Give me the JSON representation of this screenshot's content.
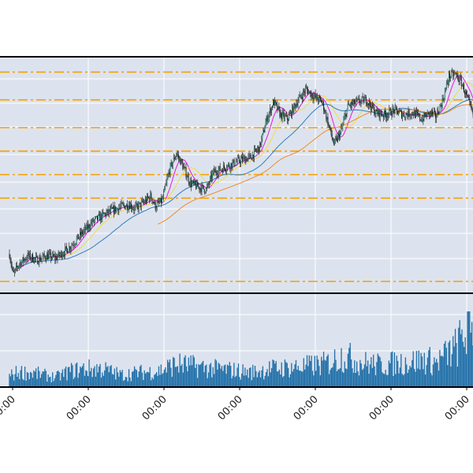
{
  "colors": {
    "panel_bg": "#dde3ee",
    "grid": "#ffffff",
    "frame": "#000000",
    "candle_up": "#1f7a6e",
    "candle_down": "#111111",
    "support_resistance": "#f5a000",
    "ma_fast": "#e619d9",
    "ma_medium": "#f2dc3c",
    "ma_slow": "#2f7fbf",
    "ma_long": "#f08a2a",
    "volume": "#1f6fa8"
  },
  "chart_data": [
    {
      "type": "candlestick",
      "title": "",
      "xlabel": "",
      "ylabel": "",
      "x_start": 0,
      "x_end": 1000,
      "ylim": [
        0,
        100
      ],
      "grid": true,
      "legend": "none",
      "price_path": [
        [
          0,
          13
        ],
        [
          8,
          3
        ],
        [
          20,
          8
        ],
        [
          40,
          12
        ],
        [
          60,
          10
        ],
        [
          80,
          12
        ],
        [
          100,
          11
        ],
        [
          130,
          16
        ],
        [
          150,
          21
        ],
        [
          180,
          28
        ],
        [
          210,
          32
        ],
        [
          240,
          35
        ],
        [
          260,
          36
        ],
        [
          270,
          34
        ],
        [
          290,
          37
        ],
        [
          305,
          40
        ],
        [
          315,
          35
        ],
        [
          330,
          38
        ],
        [
          345,
          52
        ],
        [
          360,
          60
        ],
        [
          370,
          56
        ],
        [
          390,
          46
        ],
        [
          410,
          44
        ],
        [
          425,
          43
        ],
        [
          440,
          51
        ],
        [
          460,
          53
        ],
        [
          480,
          55
        ],
        [
          500,
          57
        ],
        [
          520,
          58
        ],
        [
          540,
          63
        ],
        [
          555,
          76
        ],
        [
          570,
          84
        ],
        [
          585,
          78
        ],
        [
          600,
          76
        ],
        [
          620,
          84
        ],
        [
          640,
          90
        ],
        [
          660,
          86
        ],
        [
          675,
          84
        ],
        [
          690,
          72
        ],
        [
          700,
          64
        ],
        [
          715,
          70
        ],
        [
          730,
          82
        ],
        [
          750,
          84
        ],
        [
          770,
          85
        ],
        [
          790,
          79
        ],
        [
          810,
          78
        ],
        [
          830,
          80
        ],
        [
          850,
          78
        ],
        [
          870,
          79
        ],
        [
          890,
          76
        ],
        [
          900,
          78
        ],
        [
          910,
          79
        ],
        [
          920,
          77
        ],
        [
          935,
          85
        ],
        [
          948,
          96
        ],
        [
          962,
          97
        ],
        [
          975,
          93
        ],
        [
          987,
          86
        ],
        [
          1000,
          78
        ]
      ],
      "horizontal_levels": [
        0,
        39,
        50,
        61,
        72,
        85,
        98
      ],
      "moving_averages": [
        {
          "key": "ma_fast",
          "start": 25
        },
        {
          "key": "ma_medium",
          "start": 25
        },
        {
          "key": "ma_slow",
          "start": 25
        },
        {
          "key": "ma_long",
          "start": 320
        }
      ],
      "x_tick_labels": [
        "00:00",
        "00:00",
        "00:00",
        "00:00",
        "00:00",
        "00:00",
        "00:00"
      ],
      "x_tick_positions": [
        0,
        160,
        320,
        480,
        640,
        800,
        960
      ]
    },
    {
      "type": "bar",
      "title": "",
      "xlabel": "",
      "ylabel": "",
      "ylim": [
        0,
        100
      ],
      "grid": true,
      "volume_envelope": [
        [
          0,
          18
        ],
        [
          20,
          25
        ],
        [
          60,
          22
        ],
        [
          100,
          16
        ],
        [
          130,
          26
        ],
        [
          160,
          30
        ],
        [
          200,
          30
        ],
        [
          240,
          20
        ],
        [
          280,
          24
        ],
        [
          320,
          26
        ],
        [
          360,
          38
        ],
        [
          400,
          34
        ],
        [
          440,
          30
        ],
        [
          480,
          28
        ],
        [
          520,
          24
        ],
        [
          560,
          30
        ],
        [
          600,
          32
        ],
        [
          640,
          34
        ],
        [
          680,
          38
        ],
        [
          700,
          44
        ],
        [
          720,
          52
        ],
        [
          740,
          46
        ],
        [
          760,
          40
        ],
        [
          800,
          36
        ],
        [
          840,
          40
        ],
        [
          870,
          42
        ],
        [
          900,
          45
        ],
        [
          920,
          40
        ],
        [
          940,
          52
        ],
        [
          960,
          62
        ],
        [
          975,
          78
        ],
        [
          990,
          100
        ],
        [
          1000,
          95
        ]
      ]
    }
  ]
}
